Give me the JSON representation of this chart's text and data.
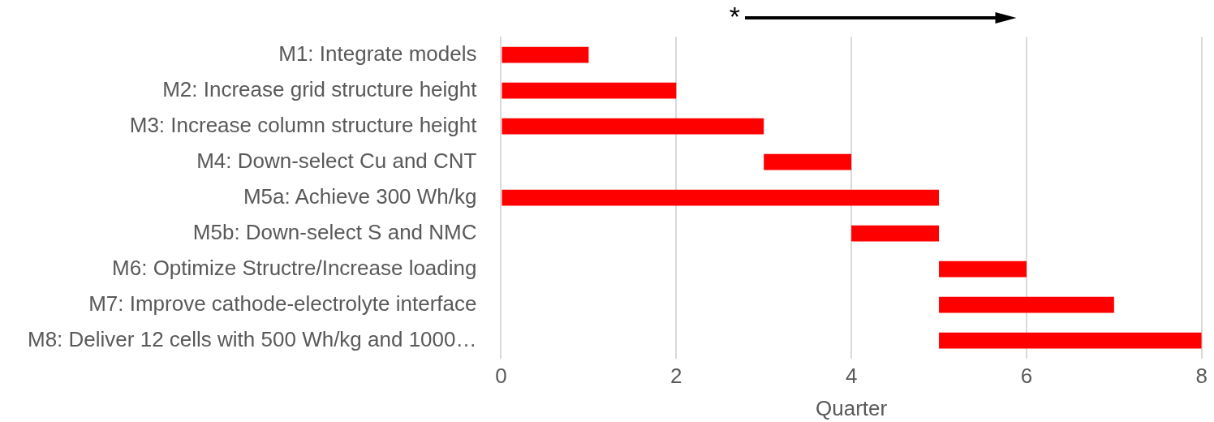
{
  "chart_data": {
    "type": "bar",
    "orientation": "horizontal",
    "categories": [
      "M1: Integrate models",
      "M2: Increase grid structure height",
      "M3: Increase column structure height",
      "M4: Down-select Cu and CNT",
      "M5a: Achieve 300 Wh/kg",
      "M5b: Down-select S and NMC",
      "M6: Optimize Structre/Increase loading",
      "M7: Improve cathode-electrolyte interface",
      "M8: Deliver 12 cells with 500 Wh/kg and 1000…"
    ],
    "base": [
      0,
      0,
      0,
      3,
      0,
      4,
      5,
      5,
      5
    ],
    "values": [
      1,
      2,
      3,
      1,
      5,
      1,
      1,
      2,
      3
    ],
    "color": "#ff0000",
    "xlabel": "Quarter",
    "xlim": [
      0,
      8
    ],
    "xticks": [
      0,
      2,
      4,
      6,
      8
    ],
    "grid": "x",
    "legend": false,
    "annotations": [
      "*"
    ]
  }
}
